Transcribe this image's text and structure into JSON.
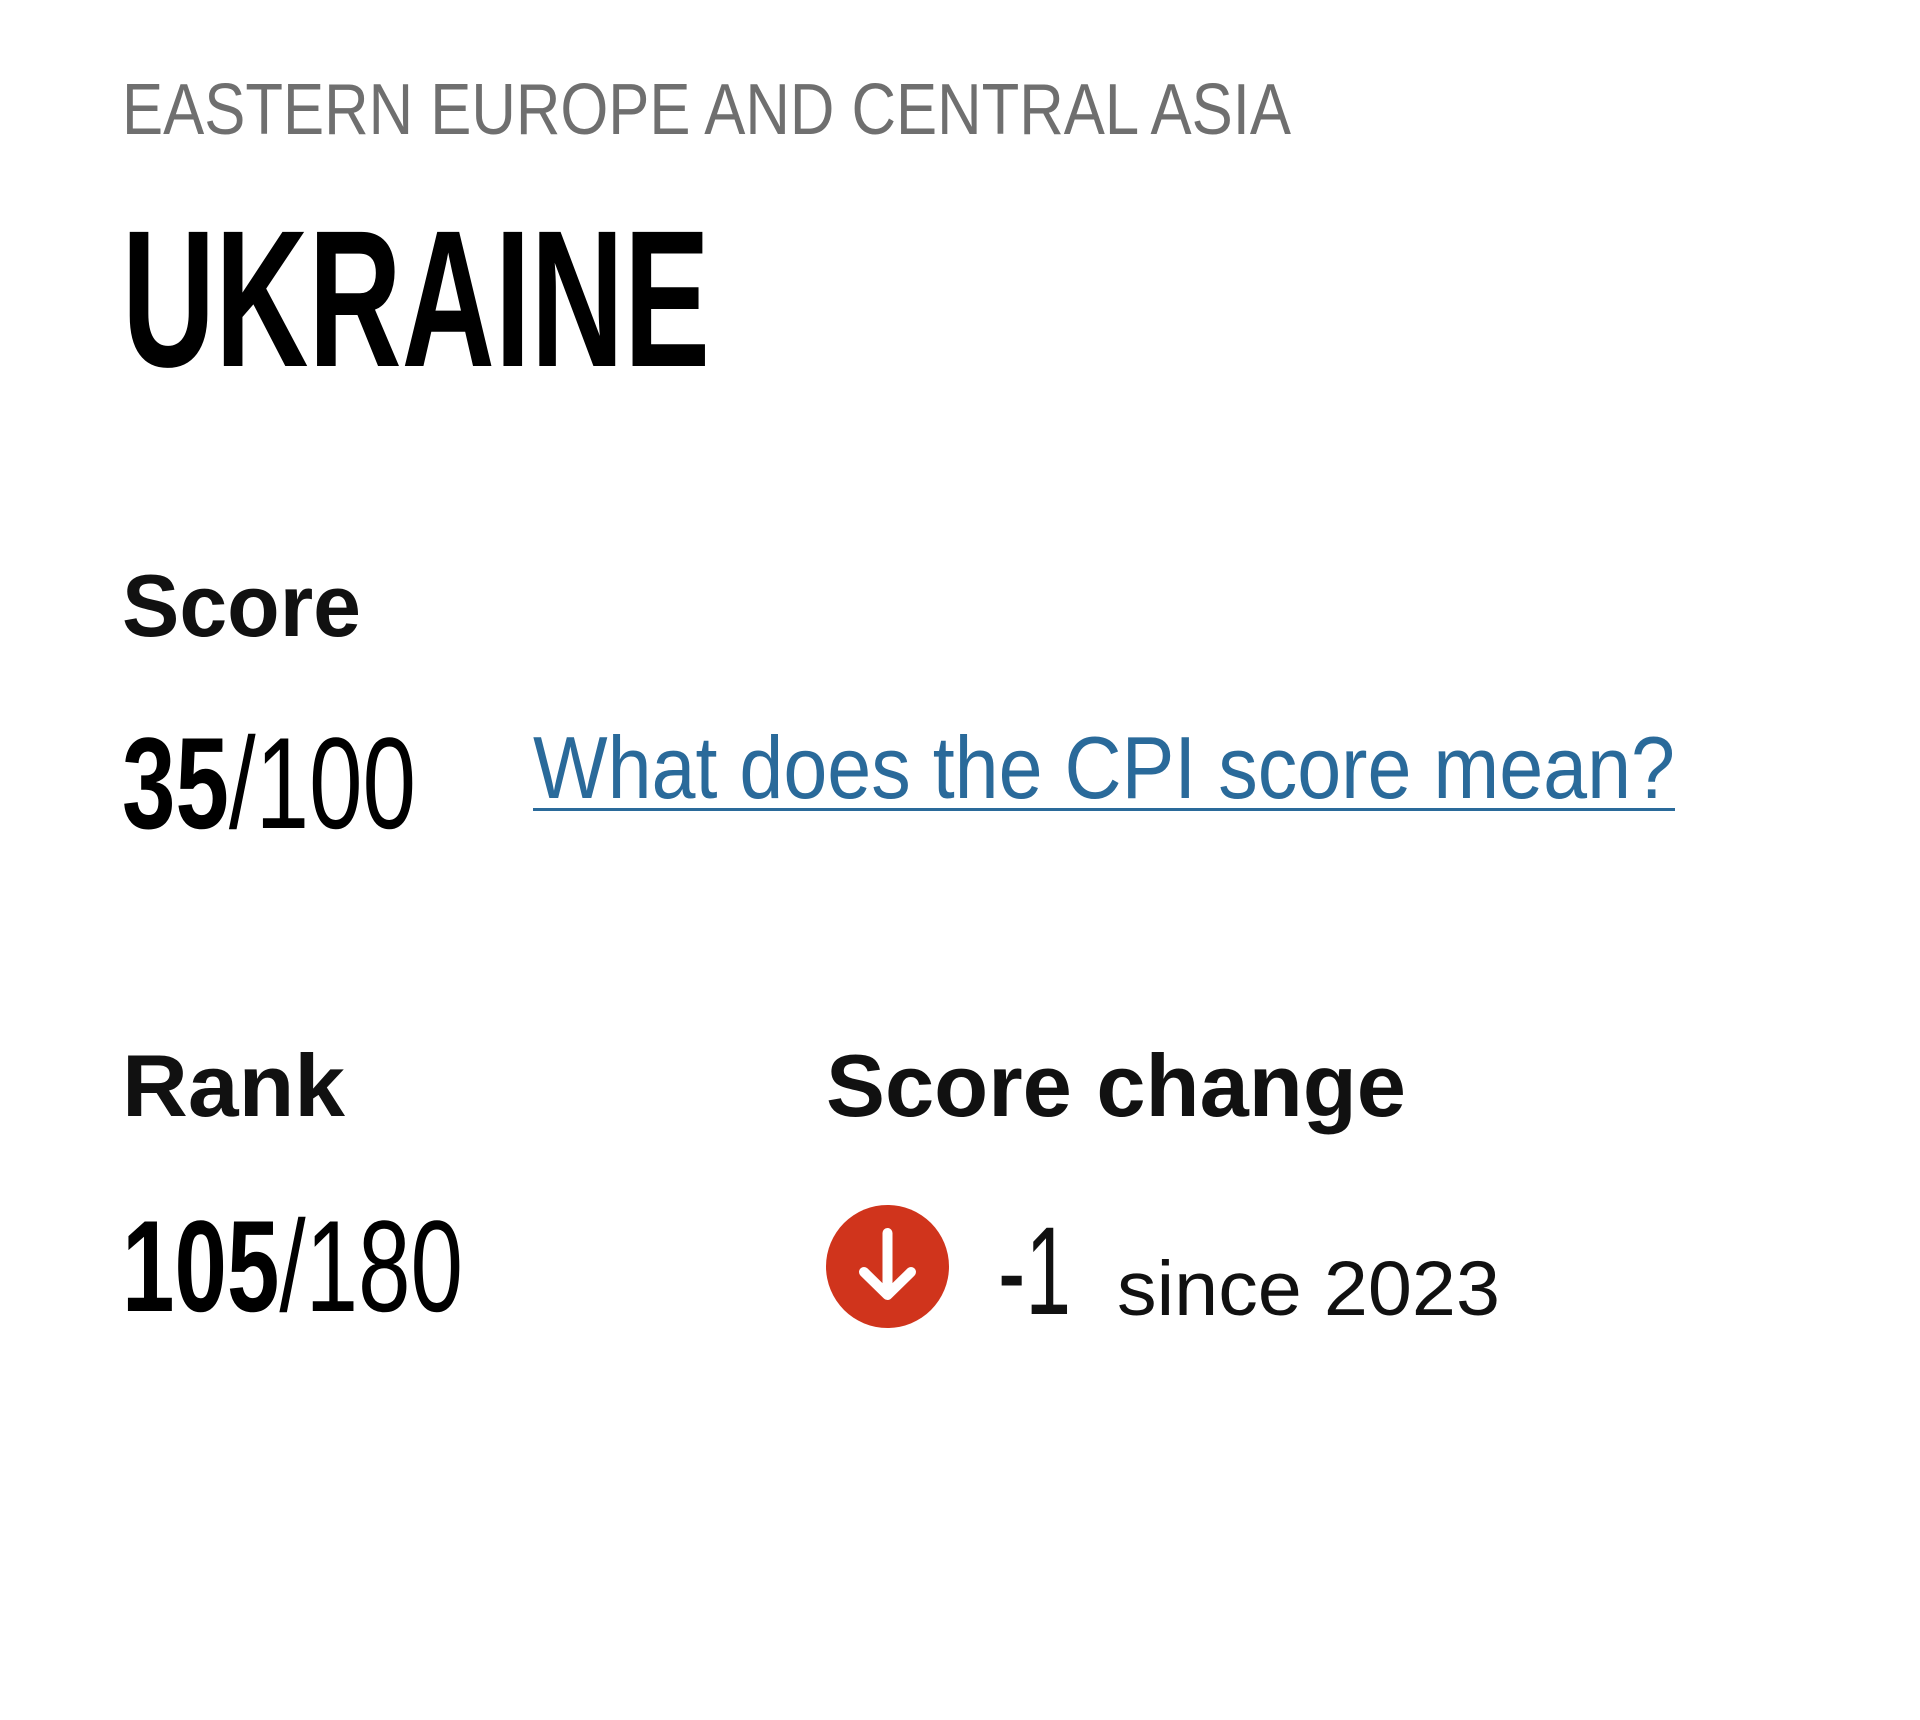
{
  "region": "EASTERN EUROPE AND CENTRAL ASIA",
  "country": "UKRAINE",
  "score": {
    "label": "Score",
    "value": "35",
    "max": "/100",
    "link_text": "What does the CPI score mean?"
  },
  "rank": {
    "label": "Rank",
    "value": "105",
    "max": "/180"
  },
  "score_change": {
    "label": "Score change",
    "value": "-1",
    "since": "since 2023",
    "direction_icon": "arrow-down-circle-icon"
  },
  "colors": {
    "decrease": "#d0341c",
    "link": "#2a6a9a",
    "region": "#6f6f6f"
  }
}
